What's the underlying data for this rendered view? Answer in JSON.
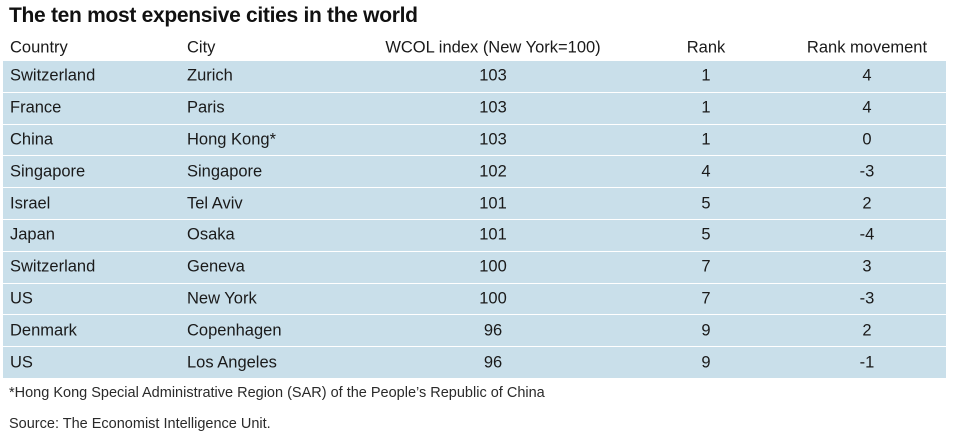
{
  "title": "The ten most expensive cities in the world",
  "chart_data": {
    "type": "table",
    "title": "The ten most expensive cities in the world",
    "columns": [
      "Country",
      "City",
      "WCOL index (New York=100)",
      "Rank",
      "Rank movement"
    ],
    "rows": [
      {
        "country": "Switzerland",
        "city": "Zurich",
        "index": "103",
        "rank": "1",
        "movement": "4"
      },
      {
        "country": "France",
        "city": "Paris",
        "index": "103",
        "rank": "1",
        "movement": "4"
      },
      {
        "country": "China",
        "city": "Hong Kong*",
        "index": "103",
        "rank": "1",
        "movement": "0"
      },
      {
        "country": "Singapore",
        "city": "Singapore",
        "index": "102",
        "rank": "4",
        "movement": "-3"
      },
      {
        "country": "Israel",
        "city": "Tel Aviv",
        "index": "101",
        "rank": "5",
        "movement": "2"
      },
      {
        "country": "Japan",
        "city": "Osaka",
        "index": "101",
        "rank": "5",
        "movement": "-4"
      },
      {
        "country": "Switzerland",
        "city": "Geneva",
        "index": "100",
        "rank": "7",
        "movement": "3"
      },
      {
        "country": "US",
        "city": "New York",
        "index": "100",
        "rank": "7",
        "movement": "-3"
      },
      {
        "country": "Denmark",
        "city": "Copenhagen",
        "index": "96",
        "rank": "9",
        "movement": "2"
      },
      {
        "country": "US",
        "city": "Los Angeles",
        "index": "96",
        "rank": "9",
        "movement": "-1"
      }
    ],
    "footnote": "*Hong Kong Special Administrative Region (SAR) of the People’s Republic of China",
    "source": "Source: The Economist Intelligence Unit."
  },
  "colors": {
    "row_fill": "#c9dfea",
    "row_divider": "#ffffff"
  }
}
